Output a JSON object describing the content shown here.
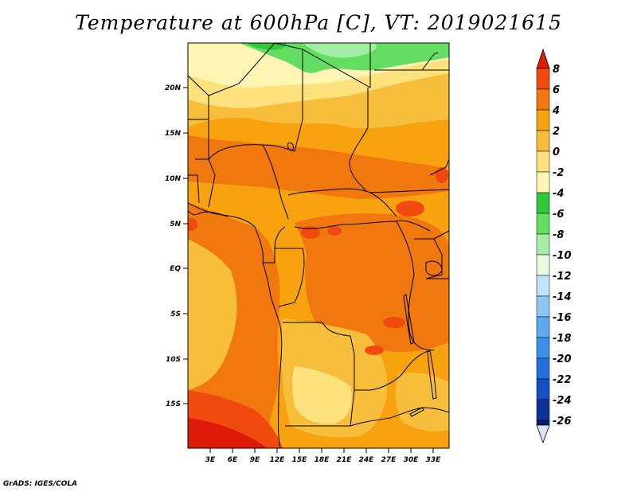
{
  "title": "Temperature at 600hPa [C], VT: 2019021615",
  "footer": "GrADS: IGES/COLA",
  "map": {
    "lat_labels": [
      "20N",
      "15N",
      "10N",
      "5N",
      "EQ",
      "5S",
      "10S",
      "15S"
    ],
    "lon_labels": [
      "3E",
      "6E",
      "9E",
      "12E",
      "15E",
      "18E",
      "21E",
      "24E",
      "27E",
      "30E",
      "33E"
    ]
  },
  "colorbar": {
    "labels": [
      "8",
      "6",
      "4",
      "2",
      "0",
      "-2",
      "-4",
      "-6",
      "-8",
      "-10",
      "-12",
      "-14",
      "-16",
      "-18",
      "-20",
      "-22",
      "-24",
      "-26"
    ],
    "colors": [
      "#de1a08",
      "#f04a0e",
      "#f0780e",
      "#f7a20e",
      "#f7be3c",
      "#fde17d",
      "#fef5b4",
      "#2ec83a",
      "#63de63",
      "#a4eda4",
      "#e6fbe2",
      "#bde4f8",
      "#8dc8f5",
      "#5ea9ef",
      "#3d8fe8",
      "#2670de",
      "#1650c7",
      "#0c3496",
      "#0a1e6e",
      "#e0e0f8"
    ]
  },
  "colors": {
    "very_warm": "#e63b0c",
    "warm": "#f0780e",
    "mid": "#f7a20e",
    "cool": "#f7be3c",
    "cooler": "#fde17d",
    "pale": "#fef5b4",
    "green": "#63de63",
    "dark_green": "#2ec83a"
  }
}
